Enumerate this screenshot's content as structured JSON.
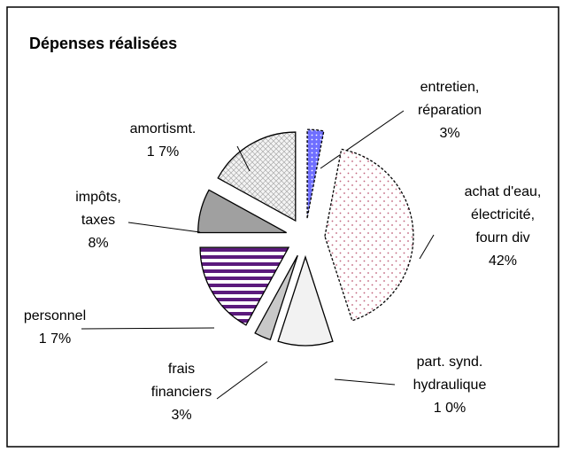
{
  "chart_data": {
    "type": "pie",
    "title": "Dépenses réalisées",
    "categories": [
      "entretien,\nréparation",
      "achat d'eau,\nélectricité,\nfourn div",
      "part. synd.\nhydraulique",
      "frais\nfinanciers",
      "personnel",
      "impôts,\ntaxes",
      "amortismt."
    ],
    "values": [
      3,
      42,
      10,
      3,
      17,
      8,
      17
    ],
    "value_labels": [
      "3%",
      "42%",
      "1 0%",
      "3%",
      "1 7%",
      "8%",
      "1 7%"
    ],
    "colors": [
      "#6f6fff",
      "#ffffff",
      "#f2f2f2",
      "#c8c8c8",
      "#5b1a7c",
      "#a0a0a0",
      "#e8e8e8"
    ],
    "patterns": [
      "dots",
      "dots",
      "solid",
      "solid",
      "stripes",
      "solid",
      "cross"
    ]
  }
}
